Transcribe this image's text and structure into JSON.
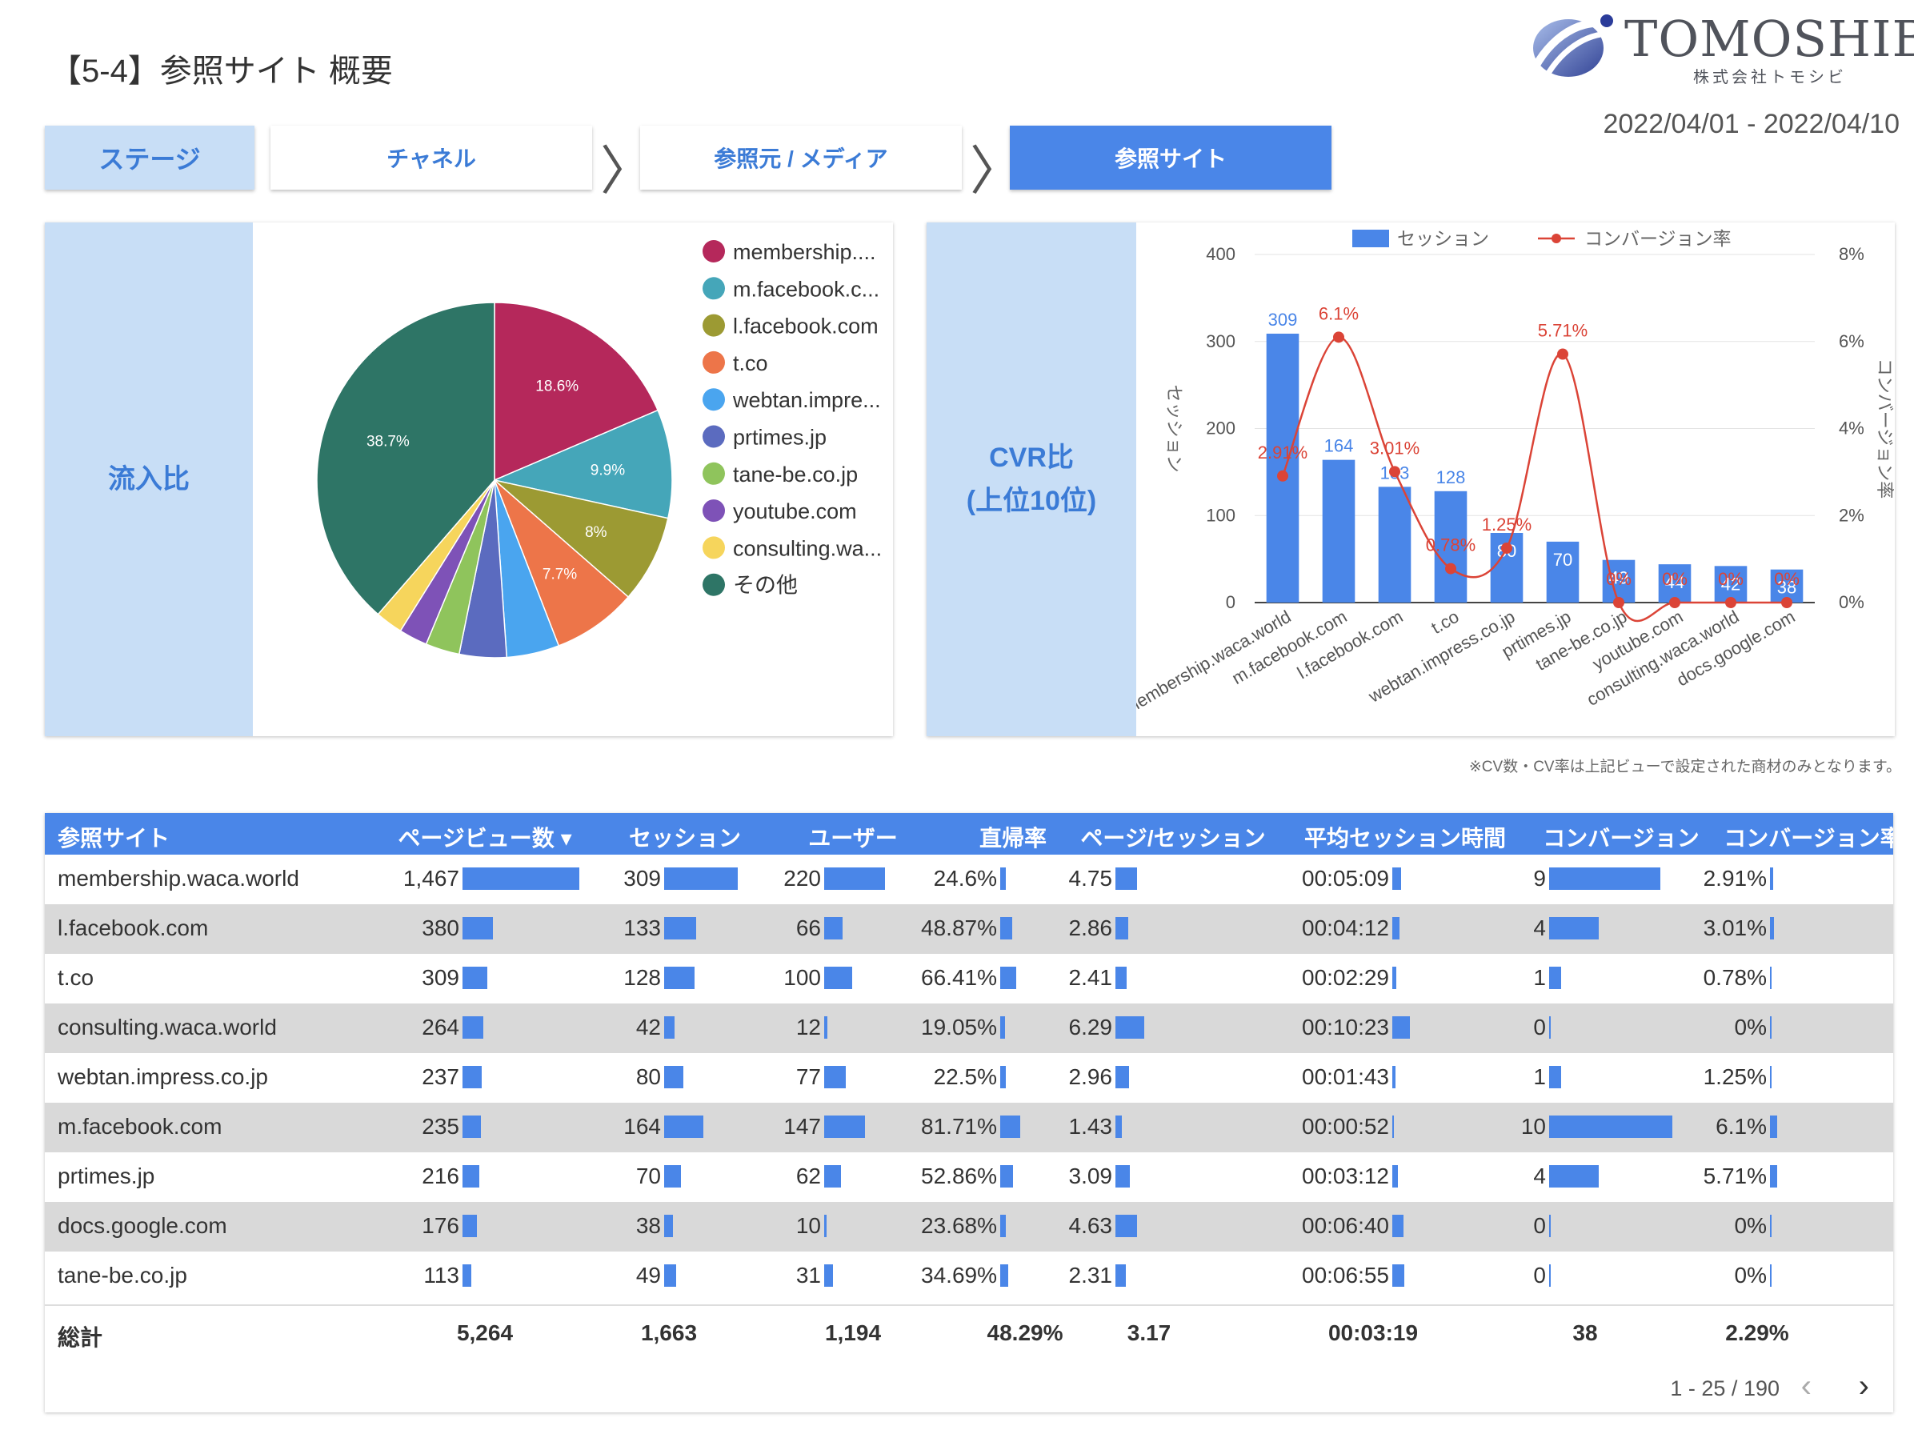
{
  "header": {
    "title": "【5-4】参照サイト 概要",
    "logo_text": "TOMOSHIBI",
    "logo_sub": "株式会社トモシビ",
    "date_range": "2022/04/01 - 2022/04/10"
  },
  "stages": [
    {
      "label": "ステージ"
    },
    {
      "label": "チャネル"
    },
    {
      "label": "参照元 / メディア"
    },
    {
      "label": "参照サイト"
    }
  ],
  "pie_card": {
    "side_label": "流入比"
  },
  "cvr_card": {
    "side_label_line1": "CVR比",
    "side_label_line2": "(上位10位)"
  },
  "colors": {
    "accent": "#4a86e8",
    "light_panel": "#c8def6",
    "line": "#db4437"
  },
  "chart_data": [
    {
      "type": "pie",
      "legend_placement": "right",
      "slices": [
        {
          "label": "membership....",
          "percent": 18.6,
          "color": "#b5285b",
          "show_label": "18.6%"
        },
        {
          "label": "m.facebook.c...",
          "percent": 9.9,
          "color": "#45a6b9",
          "show_label": "9.9%"
        },
        {
          "label": "l.facebook.com",
          "percent": 8.0,
          "color": "#9c9a33",
          "show_label": "8%"
        },
        {
          "label": "t.co",
          "percent": 7.7,
          "color": "#ed7549",
          "show_label": "7.7%"
        },
        {
          "label": "webtan.impre...",
          "percent": 4.8,
          "color": "#4aa5ef",
          "show_label": ""
        },
        {
          "label": "prtimes.jp",
          "percent": 4.3,
          "color": "#5b6bbf",
          "show_label": ""
        },
        {
          "label": "tane-be.co.jp",
          "percent": 3.1,
          "color": "#8fc45c",
          "show_label": ""
        },
        {
          "label": "youtube.com",
          "percent": 2.6,
          "color": "#7e52b7",
          "show_label": ""
        },
        {
          "label": "consulting.wa...",
          "percent": 2.5,
          "color": "#f6d55c",
          "show_label": ""
        },
        {
          "label": "その他",
          "percent": 38.7,
          "color": "#2e7566",
          "show_label": "38.7%"
        }
      ]
    },
    {
      "type": "bar",
      "categories": [
        "membership.waca.world",
        "m.facebook.com",
        "l.facebook.com",
        "t.co",
        "webtan.impress.co.jp",
        "prtimes.jp",
        "tane-be.co.jp",
        "youtube.com",
        "consulting.waca.world",
        "docs.google.com"
      ],
      "series": [
        {
          "name": "セッション",
          "type": "bar",
          "axis": "left",
          "values": [
            309,
            164,
            133,
            128,
            80,
            70,
            49,
            44,
            42,
            38
          ],
          "labels": [
            "309",
            "164",
            "133",
            "128",
            "80",
            "70",
            "49",
            "44",
            "42",
            "38"
          ]
        },
        {
          "name": "コンバージョン率",
          "type": "line",
          "axis": "right",
          "values": [
            2.91,
            6.1,
            3.01,
            0.78,
            1.25,
            5.71,
            0,
            0,
            0,
            0
          ],
          "labels": [
            "2.91%",
            "6.1%",
            "3.01%",
            "0.78%",
            "1.25%",
            "5.71%",
            "0%",
            "0%",
            "0%",
            "0%"
          ]
        }
      ],
      "ylabel": "セッション",
      "y2label": "コンバージョン率",
      "ylim": [
        0,
        400
      ],
      "y2lim": [
        0,
        8
      ],
      "yticks": [
        "0",
        "100",
        "200",
        "300",
        "400"
      ],
      "y2ticks": [
        "0%",
        "2%",
        "4%",
        "6%",
        "8%"
      ],
      "legend_placement": "top",
      "grid": true
    },
    {
      "type": "table",
      "columns": [
        "参照サイト",
        "ページビュー数 ▾",
        "セッション",
        "ユーザー",
        "直帰率",
        "ページ/セッション",
        "平均セッション時間",
        "コンバージョン",
        "コンバージョン率"
      ],
      "rows": [
        {
          "site": "membership.waca.world",
          "pv": "1,467",
          "pv_v": 1467,
          "ses": "309",
          "ses_v": 309,
          "usr": "220",
          "usr_v": 220,
          "br": "24.6%",
          "br_v": 24.6,
          "pps": "4.75",
          "pps_v": 4.75,
          "ast": "00:05:09",
          "ast_v": 309,
          "cv": "9",
          "cv_v": 9,
          "cvr": "2.91%",
          "cvr_v": 2.91
        },
        {
          "site": "l.facebook.com",
          "pv": "380",
          "pv_v": 380,
          "ses": "133",
          "ses_v": 133,
          "usr": "66",
          "usr_v": 66,
          "br": "48.87%",
          "br_v": 48.87,
          "pps": "2.86",
          "pps_v": 2.86,
          "ast": "00:04:12",
          "ast_v": 252,
          "cv": "4",
          "cv_v": 4,
          "cvr": "3.01%",
          "cvr_v": 3.01
        },
        {
          "site": "t.co",
          "pv": "309",
          "pv_v": 309,
          "ses": "128",
          "ses_v": 128,
          "usr": "100",
          "usr_v": 100,
          "br": "66.41%",
          "br_v": 66.41,
          "pps": "2.41",
          "pps_v": 2.41,
          "ast": "00:02:29",
          "ast_v": 149,
          "cv": "1",
          "cv_v": 1,
          "cvr": "0.78%",
          "cvr_v": 0.78
        },
        {
          "site": "consulting.waca.world",
          "pv": "264",
          "pv_v": 264,
          "ses": "42",
          "ses_v": 42,
          "usr": "12",
          "usr_v": 12,
          "br": "19.05%",
          "br_v": 19.05,
          "pps": "6.29",
          "pps_v": 6.29,
          "ast": "00:10:23",
          "ast_v": 623,
          "cv": "0",
          "cv_v": 0,
          "cvr": "0%",
          "cvr_v": 0
        },
        {
          "site": "webtan.impress.co.jp",
          "pv": "237",
          "pv_v": 237,
          "ses": "80",
          "ses_v": 80,
          "usr": "77",
          "usr_v": 77,
          "br": "22.5%",
          "br_v": 22.5,
          "pps": "2.96",
          "pps_v": 2.96,
          "ast": "00:01:43",
          "ast_v": 103,
          "cv": "1",
          "cv_v": 1,
          "cvr": "1.25%",
          "cvr_v": 1.25
        },
        {
          "site": "m.facebook.com",
          "pv": "235",
          "pv_v": 235,
          "ses": "164",
          "ses_v": 164,
          "usr": "147",
          "usr_v": 147,
          "br": "81.71%",
          "br_v": 81.71,
          "pps": "1.43",
          "pps_v": 1.43,
          "ast": "00:00:52",
          "ast_v": 52,
          "cv": "10",
          "cv_v": 10,
          "cvr": "6.1%",
          "cvr_v": 6.1
        },
        {
          "site": "prtimes.jp",
          "pv": "216",
          "pv_v": 216,
          "ses": "70",
          "ses_v": 70,
          "usr": "62",
          "usr_v": 62,
          "br": "52.86%",
          "br_v": 52.86,
          "pps": "3.09",
          "pps_v": 3.09,
          "ast": "00:03:12",
          "ast_v": 192,
          "cv": "4",
          "cv_v": 4,
          "cvr": "5.71%",
          "cvr_v": 5.71
        },
        {
          "site": "docs.google.com",
          "pv": "176",
          "pv_v": 176,
          "ses": "38",
          "ses_v": 38,
          "usr": "10",
          "usr_v": 10,
          "br": "23.68%",
          "br_v": 23.68,
          "pps": "4.63",
          "pps_v": 4.63,
          "ast": "00:06:40",
          "ast_v": 400,
          "cv": "0",
          "cv_v": 0,
          "cvr": "0%",
          "cvr_v": 0
        },
        {
          "site": "tane-be.co.jp",
          "pv": "113",
          "pv_v": 113,
          "ses": "49",
          "ses_v": 49,
          "usr": "31",
          "usr_v": 31,
          "br": "34.69%",
          "br_v": 34.69,
          "pps": "2.31",
          "pps_v": 2.31,
          "ast": "00:06:55",
          "ast_v": 415,
          "cv": "0",
          "cv_v": 0,
          "cvr": "0%",
          "cvr_v": 0
        }
      ],
      "totals": {
        "label": "総計",
        "pv": "5,264",
        "ses": "1,663",
        "usr": "1,194",
        "br": "48.29%",
        "pps": "3.17",
        "ast": "00:03:19",
        "cv": "38",
        "cvr": "2.29%"
      }
    }
  ],
  "note": "※CV数・CV率は上記ビューで設定された商材のみとなります。",
  "pagination": {
    "text": "1 - 25 / 190",
    "prev": "‹",
    "next": "›"
  }
}
